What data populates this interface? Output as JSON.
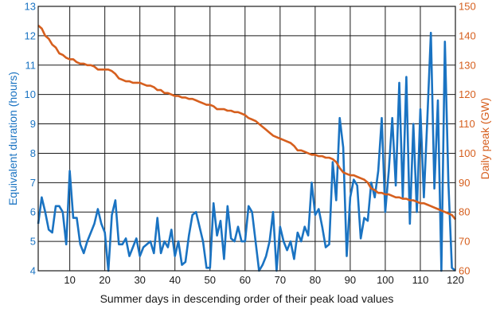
{
  "colors": {
    "left_series": "#1a73c2",
    "right_series": "#d65f1e",
    "grid": "#1a1a1a",
    "text": "#1a1a1a"
  },
  "chart_data": {
    "type": "line",
    "xlabel": "Summer days in descending order of their peak load values",
    "ylabel_left": "Equivalent duration (hours)",
    "ylabel_right": "Daily peak (GW)",
    "xlim": [
      1,
      120
    ],
    "ylim_left": [
      4,
      13
    ],
    "ylim_right": [
      60,
      150
    ],
    "x_ticks": [
      "10",
      "20",
      "30",
      "40",
      "50",
      "60",
      "70",
      "80",
      "90",
      "100",
      "110",
      "120"
    ],
    "y_left_ticks": [
      "4",
      "5",
      "6",
      "7",
      "8",
      "9",
      "10",
      "11",
      "12",
      "13"
    ],
    "y_right_ticks": [
      "60",
      "70",
      "80",
      "90",
      "100",
      "110",
      "120",
      "130",
      "140",
      "150"
    ],
    "grid": true,
    "legend": "none",
    "series": [
      {
        "axis": "left",
        "x": [
          1,
          2,
          3,
          4,
          5,
          6,
          7,
          8,
          9,
          10,
          11,
          12,
          13,
          14,
          15,
          16,
          17,
          18,
          19,
          20,
          21,
          22,
          23,
          24,
          25,
          26,
          27,
          28,
          29,
          30,
          31,
          32,
          33,
          34,
          35,
          36,
          37,
          38,
          39,
          40,
          41,
          42,
          43,
          44,
          45,
          46,
          47,
          48,
          49,
          50,
          51,
          52,
          53,
          54,
          55,
          56,
          57,
          58,
          59,
          60,
          61,
          62,
          63,
          64,
          65,
          66,
          67,
          68,
          69,
          70,
          71,
          72,
          73,
          74,
          75,
          76,
          77,
          78,
          79,
          80,
          81,
          82,
          83,
          84,
          85,
          86,
          87,
          88,
          89,
          90,
          91,
          92,
          93,
          94,
          95,
          96,
          97,
          98,
          99,
          100,
          101,
          102,
          103,
          104,
          105,
          106,
          107,
          108,
          109,
          110,
          111,
          112,
          113,
          114,
          115,
          116,
          117,
          118,
          119,
          120
        ],
        "values": [
          5.6,
          6.5,
          6.0,
          5.4,
          5.3,
          6.2,
          6.2,
          6.0,
          4.9,
          7.4,
          5.8,
          5.8,
          4.9,
          4.6,
          5.0,
          5.3,
          5.6,
          6.1,
          5.6,
          5.3,
          4.0,
          5.9,
          6.4,
          4.9,
          4.9,
          5.1,
          4.5,
          4.8,
          5.1,
          4.5,
          4.8,
          4.9,
          5.0,
          4.6,
          5.8,
          4.6,
          5.0,
          4.8,
          5.4,
          4.5,
          5.0,
          4.2,
          4.3,
          5.2,
          5.9,
          6.0,
          5.5,
          5.0,
          4.1,
          4.1,
          6.3,
          5.2,
          5.7,
          4.4,
          6.2,
          5.1,
          5.0,
          5.5,
          5.0,
          5.0,
          6.2,
          6.0,
          5.0,
          4.0,
          4.2,
          4.5,
          5.0,
          6.0,
          4.0,
          5.5,
          5.0,
          4.7,
          5.0,
          4.4,
          5.3,
          5.0,
          5.5,
          5.2,
          7.0,
          5.9,
          6.1,
          5.5,
          4.8,
          4.9,
          7.7,
          6.4,
          9.2,
          8.2,
          4.5,
          6.5,
          7.1,
          6.9,
          5.1,
          5.8,
          5.7,
          7.0,
          6.5,
          7.4,
          9.2,
          6.0,
          7.4,
          9.2,
          6.9,
          10.4,
          6.5,
          10.6,
          5.6,
          9.0,
          6.0,
          9.5,
          6.5,
          9.2,
          12.1,
          6.8,
          9.8,
          4.0,
          11.8,
          7.0,
          4.1,
          4.0
        ]
      },
      {
        "axis": "right",
        "x": [
          1,
          2,
          3,
          4,
          5,
          6,
          7,
          8,
          9,
          10,
          11,
          12,
          13,
          14,
          15,
          16,
          17,
          18,
          19,
          20,
          21,
          22,
          23,
          24,
          25,
          26,
          27,
          28,
          29,
          30,
          31,
          32,
          33,
          34,
          35,
          36,
          37,
          38,
          39,
          40,
          41,
          42,
          43,
          44,
          45,
          46,
          47,
          48,
          49,
          50,
          51,
          52,
          53,
          54,
          55,
          56,
          57,
          58,
          59,
          60,
          61,
          62,
          63,
          64,
          65,
          66,
          67,
          68,
          69,
          70,
          71,
          72,
          73,
          74,
          75,
          76,
          77,
          78,
          79,
          80,
          81,
          82,
          83,
          84,
          85,
          86,
          87,
          88,
          89,
          90,
          91,
          92,
          93,
          94,
          95,
          96,
          97,
          98,
          99,
          100,
          101,
          102,
          103,
          104,
          105,
          106,
          107,
          108,
          109,
          110,
          111,
          112,
          113,
          114,
          115,
          116,
          117,
          118,
          119,
          120
        ],
        "values": [
          143.5,
          142.5,
          140,
          139,
          137,
          136,
          134,
          133.5,
          132.5,
          132,
          132,
          131,
          130.5,
          130.5,
          130,
          130,
          129.5,
          128.5,
          128.5,
          128.5,
          128.5,
          128,
          127,
          125.5,
          125,
          124.5,
          124.5,
          124,
          124,
          124,
          123.5,
          123,
          123,
          122.5,
          121.5,
          121.5,
          120.5,
          120.5,
          120,
          119.5,
          119.5,
          119,
          119,
          118.5,
          118.5,
          118,
          117.5,
          117,
          116.5,
          116.5,
          116,
          115,
          115,
          115,
          114.5,
          114.5,
          114,
          114,
          113.5,
          113,
          112,
          111.5,
          111,
          110,
          109,
          108,
          107,
          106,
          105.5,
          105,
          104.5,
          104,
          103.5,
          102.5,
          101,
          101,
          100.5,
          100,
          99.5,
          99.5,
          99,
          99,
          98.5,
          98.5,
          98,
          97,
          95,
          93.5,
          93,
          92.5,
          92.5,
          92,
          91.5,
          91,
          90,
          88,
          87.5,
          86.5,
          86.5,
          86,
          86,
          85.5,
          85,
          85,
          84.5,
          84.5,
          84,
          84,
          83.5,
          83,
          83,
          82.5,
          82,
          81.5,
          81,
          80.5,
          80,
          79.5,
          79,
          77.5
        ]
      }
    ]
  }
}
